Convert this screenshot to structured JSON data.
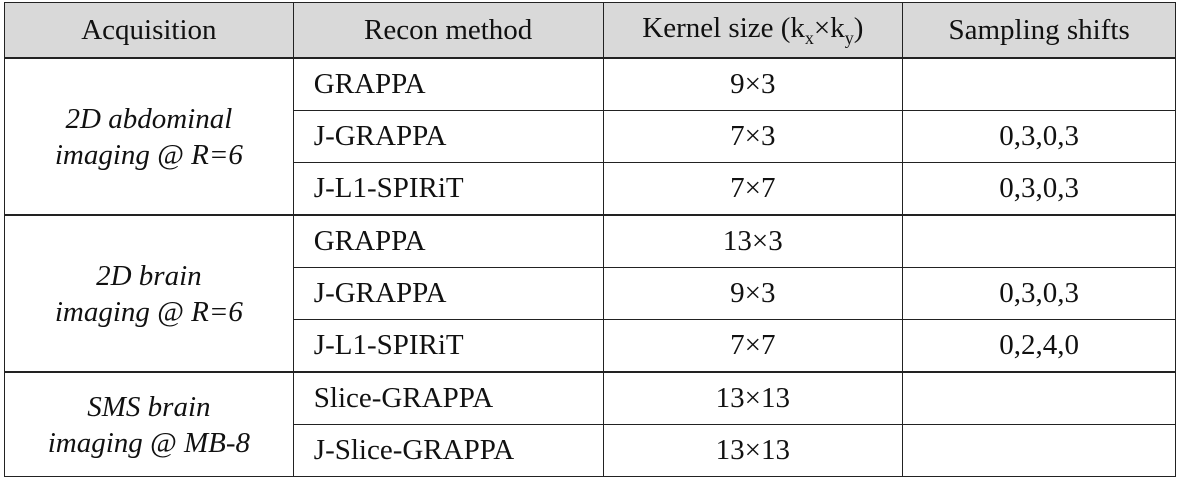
{
  "table": {
    "header": [
      {
        "parts": [
          "Acquisition"
        ]
      },
      {
        "parts": [
          "Recon method"
        ]
      },
      {
        "parts": [
          "Kernel size (k",
          "x",
          "×k",
          "y",
          ")"
        ]
      },
      {
        "parts": [
          "Sampling shifts"
        ]
      }
    ],
    "groups": [
      {
        "acquisition": [
          "2D abdominal",
          "imaging @ R=6"
        ],
        "rows": [
          [
            "GRAPPA",
            "9×3",
            null
          ],
          [
            "J-GRAPPA",
            "7×3",
            "0,3,0,3"
          ],
          [
            "J-L1-SPIRiT",
            "7×7",
            "0,3,0,3"
          ]
        ]
      },
      {
        "acquisition": [
          "2D brain",
          "imaging @ R=6"
        ],
        "rows": [
          [
            "GRAPPA",
            "13×3",
            null
          ],
          [
            "J-GRAPPA",
            "9×3",
            "0,3,0,3"
          ],
          [
            "J-L1-SPIRiT",
            "7×7",
            "0,2,4,0"
          ]
        ]
      },
      {
        "acquisition": [
          "SMS brain",
          "imaging @ MB-8"
        ],
        "rows": [
          [
            "Slice-GRAPPA",
            "13×13",
            null
          ],
          [
            "J-Slice-GRAPPA",
            "13×13",
            null
          ]
        ]
      }
    ]
  }
}
